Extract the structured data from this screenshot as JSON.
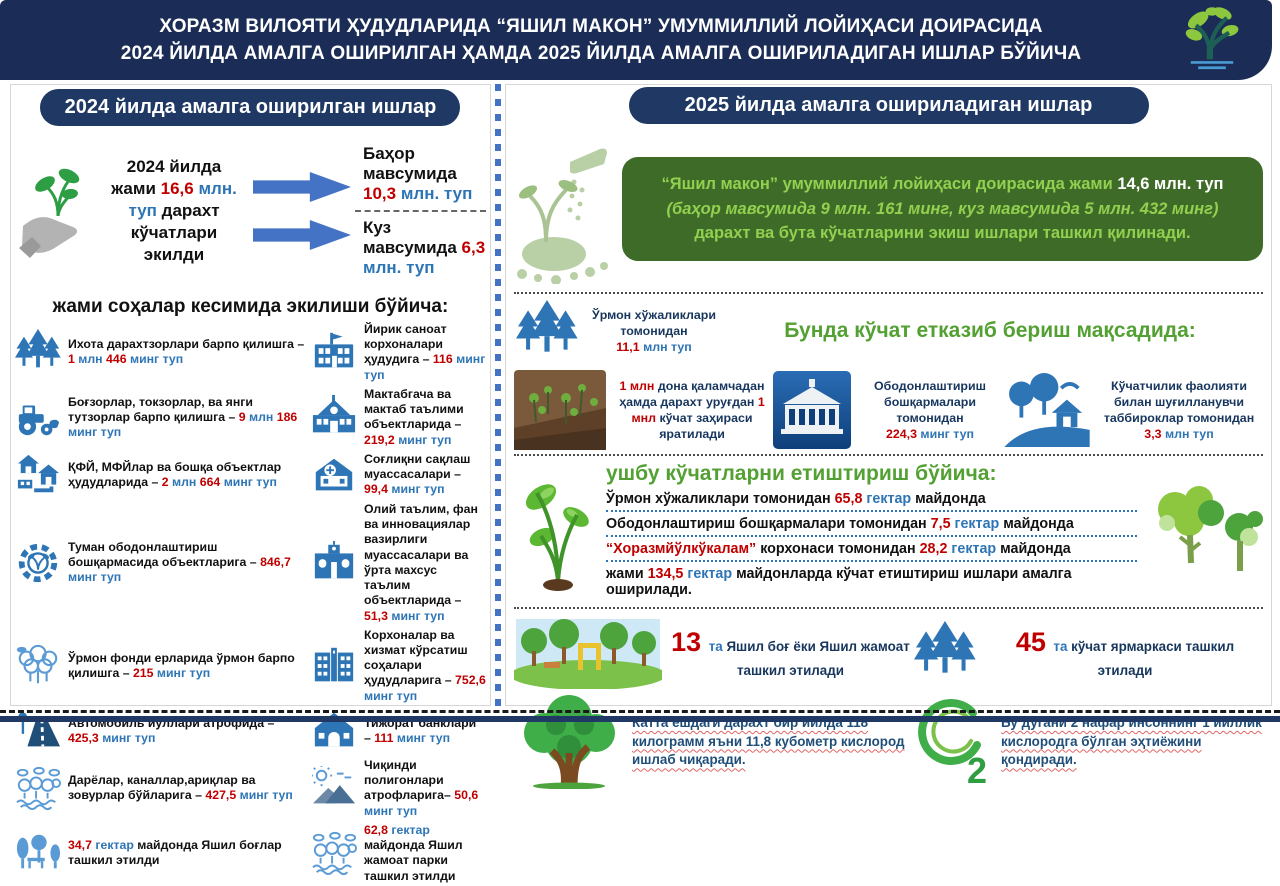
{
  "header": {
    "line1": "ХОРАЗМ ВИЛОЯТИ ҲУДУДЛАРИДА “ЯШИЛ МАКОН” УМУММИЛЛИЙ ЛОЙИҲАСИ ДОИРАСИДА",
    "line2": "2024 ЙИЛДА АМАЛГА ОШИРИЛГАН ҲАМДА 2025 ЙИЛДА АМАЛГА ОШИРИЛАДИГАН ИШЛАР БЎЙИЧА"
  },
  "colors": {
    "navy": "#1f3864",
    "header_navy": "#1b2c56",
    "red": "#c00000",
    "steel_blue": "#2e75b6",
    "green_box_bg": "#3f6b28",
    "bright_green": "#92d050",
    "section_green": "#53a033",
    "arrow_blue": "#4472c4"
  },
  "left_panel": {
    "title": "2024 йилда амалга оширилган ишлар",
    "summary": [
      {
        "t": "2024 йилда\nжами "
      },
      {
        "t": "16,6 ",
        "c": "r"
      },
      {
        "t": "млн.\nтуп ",
        "c": "b"
      },
      {
        "t": "дарахт\nкўчатлари экилди"
      }
    ],
    "spring": [
      {
        "t": "Баҳор мавсумида "
      },
      {
        "t": "10,3 ",
        "c": "r"
      },
      {
        "t": "млн. туп",
        "c": "b"
      }
    ],
    "autumn": [
      {
        "t": "Куз мавсумида "
      },
      {
        "t": "6,3 ",
        "c": "r"
      },
      {
        "t": "млн. туп",
        "c": "b"
      }
    ],
    "section_title": "жами соҳалар кесимида экилиши бўйича:",
    "items": [
      {
        "icon": "shelterbelt-forest-icon",
        "text": [
          {
            "t": "Ихота дарахтзорлари барпо қилишга – "
          },
          {
            "t": "1 ",
            "c": "r"
          },
          {
            "t": "млн ",
            "c": "b"
          },
          {
            "t": "446 ",
            "c": "r"
          },
          {
            "t": "минг туп",
            "c": "b"
          }
        ]
      },
      {
        "icon": "factory-icon",
        "text": [
          {
            "t": "Йирик саноат корхоналари ҳудудига – "
          },
          {
            "t": "116 ",
            "c": "r"
          },
          {
            "t": "минг туп",
            "c": "b"
          }
        ]
      },
      {
        "icon": "tractor-icon",
        "text": [
          {
            "t": "Боғзорлар, токзорлар, ва янги тутзорлар барпо қилишга – "
          },
          {
            "t": "9 ",
            "c": "r"
          },
          {
            "t": "млн ",
            "c": "b"
          },
          {
            "t": "186 ",
            "c": "r"
          },
          {
            "t": "минг туп",
            "c": "b"
          }
        ]
      },
      {
        "icon": "school-icon",
        "text": [
          {
            "t": "Мактабгача ва мактаб таълими объектларида – "
          },
          {
            "t": "219,2 ",
            "c": "r"
          },
          {
            "t": "минг туп",
            "c": "b"
          }
        ]
      },
      {
        "icon": "village-icon",
        "text": [
          {
            "t": "ҚФЙ, МФЙлар ва бошқа объектлар ҳудудларида – "
          },
          {
            "t": "2 ",
            "c": "r"
          },
          {
            "t": "млн ",
            "c": "b"
          },
          {
            "t": "664 ",
            "c": "r"
          },
          {
            "t": "минг туп",
            "c": "b"
          }
        ]
      },
      {
        "icon": "hospital-icon",
        "text": [
          {
            "t": "Соғлиқни сақлаш муассасалари – "
          },
          {
            "t": "99,4 ",
            "c": "r"
          },
          {
            "t": "минг туп",
            "c": "b"
          }
        ]
      },
      {
        "icon": "landscaping-gear-icon",
        "text": [
          {
            "t": "Туман ободонлаштириш бошқармасида объектларига – "
          },
          {
            "t": "846,7 ",
            "c": "r"
          },
          {
            "t": "минг туп",
            "c": "b"
          }
        ]
      },
      {
        "icon": "university-icon",
        "text": [
          {
            "t": "Олий таълим, фан ва инновациялар вазирлиги муассасалари ва ўрта махсус таълим объектларида – "
          },
          {
            "t": "51,3 ",
            "c": "r"
          },
          {
            "t": "минг туп",
            "c": "b"
          }
        ]
      },
      {
        "icon": "forest-fund-icon",
        "text": [
          {
            "t": "Ўрмон фонди ерларида ўрмон барпо қилишга – "
          },
          {
            "t": "215 ",
            "c": "r"
          },
          {
            "t": "минг туп",
            "c": "b"
          }
        ]
      },
      {
        "icon": "service-buildings-icon",
        "text": [
          {
            "t": "Корхоналар ва хизмат кўрсатиш соҳалари ҳудудларига – "
          },
          {
            "t": "752,6 ",
            "c": "r"
          },
          {
            "t": "минг туп",
            "c": "b"
          }
        ]
      },
      {
        "icon": "road-icon",
        "text": [
          {
            "t": "Автомобиль йўллари атрофида – "
          },
          {
            "t": "425,3 ",
            "c": "r"
          },
          {
            "t": "минг туп",
            "c": "b"
          }
        ]
      },
      {
        "icon": "bank-icon",
        "text": [
          {
            "t": "Тижорат банклари – "
          },
          {
            "t": "111 ",
            "c": "r"
          },
          {
            "t": "минг туп",
            "c": "b"
          }
        ]
      },
      {
        "icon": "canal-trees-icon",
        "text": [
          {
            "t": "Дарёлар, каналлар,ариқлар ва зовурлар бўйларига – "
          },
          {
            "t": "427,5 ",
            "c": "r"
          },
          {
            "t": "минг туп",
            "c": "b"
          }
        ]
      },
      {
        "icon": "landfill-icon",
        "text": [
          {
            "t": "Чиқинди полигонлари атрофларига– "
          },
          {
            "t": "50,6 ",
            "c": "r"
          },
          {
            "t": "минг туп",
            "c": "b"
          }
        ]
      },
      {
        "icon": "green-garden-icon",
        "text": [
          {
            "t": "34,7 ",
            "c": "r"
          },
          {
            "t": "гектар ",
            "c": "b"
          },
          {
            "t": "майдонда Яшил боғлар ташкил этилди"
          }
        ]
      },
      {
        "icon": "public-park-icon",
        "text": [
          {
            "t": "62,8 ",
            "c": "r"
          },
          {
            "t": "гектар ",
            "c": "b"
          },
          {
            "t": "майдонда Яшил жамоат парки ташкил этилди"
          }
        ]
      }
    ]
  },
  "right_panel": {
    "title": "2025 йилда амалга ошириладиган ишлар",
    "green_box": [
      {
        "t": "“Яшил макон” умуммиллий лойиҳаси доирасида жами ",
        "c": "g"
      },
      {
        "t": "14,6 млн. туп ",
        "c": "w"
      },
      {
        "t": "(баҳор мавсумида 9 млн. 161 минг, куз мавсумида 5 млн. 432 минг) ",
        "c": "gi"
      },
      {
        "t": "дарахт ва бута кўчатларини экиш ишлари ташкил қилинади.",
        "c": "g"
      }
    ],
    "supply": {
      "title": "Бунда кўчат етказиб бериш мақсадида:",
      "forest": [
        {
          "t": "Ўрмон хўжаликлари томонидан\n"
        },
        {
          "t": "11,1 ",
          "c": "r"
        },
        {
          "t": "млн туп",
          "c": "b"
        }
      ],
      "cuttings": [
        {
          "t": "1 млн ",
          "c": "r"
        },
        {
          "t": "дона қаламчадан ҳамда дарахт уруғдан "
        },
        {
          "t": "1 мнл ",
          "c": "r"
        },
        {
          "t": "кўчат заҳираси яратилади"
        }
      ],
      "beautification": [
        {
          "t": "Ободонлаштириш бошқармалари томонидан\n"
        },
        {
          "t": "224,3 ",
          "c": "r"
        },
        {
          "t": "минг туп",
          "c": "b"
        }
      ],
      "nurseries": [
        {
          "t": "Кўчатчилик фаолияти билан шуғилланувчи таббироклар томонидан\n"
        },
        {
          "t": "3,3 ",
          "c": "r"
        },
        {
          "t": "млн туп",
          "c": "b"
        }
      ]
    },
    "grow": {
      "title": "ушбу кўчатларни етиштириш бўйича:",
      "lines": [
        [
          {
            "t": "Ўрмон хўжаликлари томонидан "
          },
          {
            "t": "65,8 ",
            "c": "r"
          },
          {
            "t": "гектар ",
            "c": "b"
          },
          {
            "t": "майдонда"
          }
        ],
        [
          {
            "t": "Ободонлаштириш бошқармалари томонидан "
          },
          {
            "t": "7,5 ",
            "c": "r"
          },
          {
            "t": "гектар ",
            "c": "b"
          },
          {
            "t": "майдонда"
          }
        ],
        [
          {
            "t": "“Хоразмйўлкўкалам” ",
            "c": "r"
          },
          {
            "t": "корхонаси томонидан "
          },
          {
            "t": "28,2 ",
            "c": "r"
          },
          {
            "t": "гектар ",
            "c": "b"
          },
          {
            "t": "майдонда"
          }
        ],
        [
          {
            "t": "жами "
          },
          {
            "t": "134,5 ",
            "c": "r"
          },
          {
            "t": "гектар ",
            "c": "b"
          },
          {
            "t": "майдонларда кўчат етиштириш ишлари амалга оширилади."
          }
        ]
      ]
    },
    "bottom": {
      "green_gardens": [
        {
          "t": "13 ",
          "c": "rb"
        },
        {
          "t": "та ",
          "c": "b"
        },
        {
          "t": "Яшил боғ ёки Яшил жамоат ташкил этилади"
        }
      ],
      "fairs": [
        {
          "t": "45 ",
          "c": "rb"
        },
        {
          "t": "та ",
          "c": "b"
        },
        {
          "t": "кўчат ярмаркаси ташкил этилади"
        }
      ],
      "oxygen_fact": [
        {
          "t": "Катта ёшдаги дарахт бир йилда 118 килограмм яъни 11,8 кубометр кислород ишлаб чиқаради.",
          "c": "uw"
        }
      ],
      "oxygen_need": [
        {
          "t": "Бу дугани 2 нафар инсоннинг 1 йиллик кислородга бўлган эҳтиёжини қондиради.",
          "c": "uw"
        }
      ]
    }
  },
  "icons": {
    "header-tree-icon": "green tree logo",
    "hand-seedling-icon": "gray hand holding sprout",
    "planting-hand-icon": "hand sowing seeds over mound",
    "seedlings-photo": "photo of seedlings in soil",
    "government-building-icon": "white administrative building on blue",
    "nursery-icon": "trees with house on hill",
    "o2-icon": "green O2 oxygen mark",
    "big-tree-icon": "large green tree",
    "park-illustration": "green park scene"
  }
}
